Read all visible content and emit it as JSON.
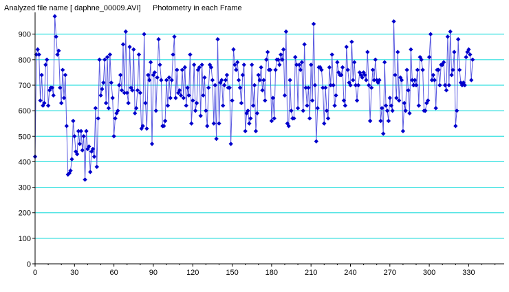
{
  "header": {
    "file_label": "Analyzed file name [ daphne_00009.AVI]",
    "subtitle": "Photometry in each Frame"
  },
  "colors": {
    "grid": "#00D8D8",
    "series": "#0000CC",
    "line": "#5A5AE0",
    "axis": "#000000"
  },
  "chart_data": {
    "type": "line",
    "title": "Photometry in each Frame",
    "xlabel": "",
    "ylabel": "",
    "xlim": [
      0,
      357
    ],
    "ylim": [
      0,
      980
    ],
    "xticks": [
      0,
      30,
      60,
      90,
      120,
      150,
      180,
      210,
      240,
      270,
      300,
      330
    ],
    "yticks": [
      0,
      100,
      200,
      300,
      400,
      500,
      600,
      700,
      800,
      900
    ],
    "grid": true,
    "markers": "diamond",
    "series": [
      {
        "name": "",
        "values": [
          420,
          820,
          840,
          820,
          640,
          740,
          620,
          630,
          780,
          800,
          620,
          680,
          690,
          690,
          660,
          970,
          890,
          820,
          835,
          690,
          630,
          760,
          650,
          740,
          540,
          350,
          355,
          365,
          410,
          560,
          500,
          440,
          430,
          520,
          470,
          520,
          445,
          500,
          330,
          520,
          450,
          460,
          360,
          440,
          450,
          420,
          610,
          380,
          570,
          800,
          660,
          685,
          710,
          800,
          630,
          810,
          610,
          820,
          710,
          650,
          500,
          570,
          590,
          600,
          700,
          740,
          680,
          860,
          670,
          910,
          670,
          630,
          850,
          690,
          680,
          840,
          590,
          610,
          680,
          820,
          670,
          530,
          540,
          900,
          630,
          530,
          740,
          720,
          790,
          470,
          740,
          750,
          600,
          730,
          880,
          780,
          720,
          540,
          540,
          560,
          720,
          620,
          730,
          650,
          720,
          820,
          890,
          650,
          760,
          670,
          680,
          660,
          760,
          650,
          770,
          620,
          690,
          660,
          820,
          550,
          640,
          780,
          600,
          630,
          760,
          770,
          580,
          780,
          660,
          730,
          600,
          540,
          690,
          780,
          770,
          720,
          550,
          700,
          490,
          880,
          550,
          710,
          720,
          620,
          700,
          720,
          740,
          690,
          690,
          470,
          640,
          840,
          780,
          760,
          790,
          720,
          690,
          630,
          740,
          780,
          520,
          590,
          600,
          550,
          570,
          780,
          620,
          700,
          520,
          590,
          740,
          720,
          770,
          680,
          720,
          640,
          800,
          830,
          760,
          760,
          560,
          650,
          570,
          760,
          800,
          800,
          780,
          820,
          800,
          840,
          660,
          910,
          550,
          540,
          720,
          600,
          570,
          570,
          810,
          780,
          610,
          780,
          760,
          790,
          600,
          860,
          690,
          620,
          690,
          570,
          780,
          640,
          940,
          700,
          480,
          610,
          770,
          770,
          760,
          690,
          550,
          690,
          600,
          570,
          770,
          700,
          820,
          700,
          620,
          660,
          790,
          750,
          740,
          740,
          770,
          640,
          620,
          850,
          760,
          710,
          700,
          870,
          720,
          790,
          700,
          640,
          700,
          750,
          740,
          730,
          750,
          740,
          720,
          830,
          700,
          560,
          690,
          760,
          720,
          800,
          720,
          710,
          720,
          560,
          610,
          510,
          790,
          620,
          600,
          560,
          650,
          620,
          600,
          950,
          740,
          650,
          830,
          640,
          730,
          720,
          520,
          630,
          600,
          760,
          680,
          590,
          840,
          720,
          700,
          720,
          700,
          760,
          620,
          810,
          800,
          760,
          600,
          600,
          630,
          640,
          810,
          900,
          720,
          740,
          720,
          610,
          760,
          760,
          700,
          780,
          780,
          790,
          700,
          680,
          890,
          700,
          910,
          740,
          760,
          830,
          540,
          600,
          880,
          760,
          710,
          700,
          710,
          700,
          810,
          830,
          840,
          820,
          720,
          800
        ]
      }
    ]
  }
}
